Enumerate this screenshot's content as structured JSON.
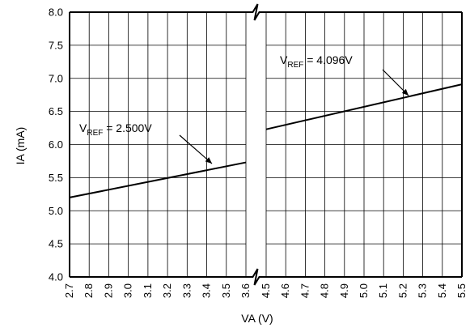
{
  "chart_data": {
    "type": "line",
    "xlabel": "VA (V)",
    "ylabel": "IA (mA)",
    "ylim": [
      4.0,
      8.0
    ],
    "y_ticks": [
      "4.0",
      "4.5",
      "5.0",
      "5.5",
      "6.0",
      "6.5",
      "7.0",
      "7.5",
      "8.0"
    ],
    "axis_break": true,
    "panels": [
      {
        "xlim": [
          2.7,
          3.6
        ],
        "x_ticks": [
          "2.7",
          "2.8",
          "2.9",
          "3.0",
          "3.1",
          "3.2",
          "3.3",
          "3.4",
          "3.5",
          "3.6"
        ],
        "series": [
          {
            "x": [
              2.7,
              3.6
            ],
            "y": [
              5.2,
              5.73
            ],
            "label_main": "V",
            "label_sub": "REF",
            "label_rest": " = 2.500V"
          }
        ]
      },
      {
        "xlim": [
          4.5,
          5.5
        ],
        "x_ticks": [
          "4.5",
          "4.6",
          "4.7",
          "4.8",
          "4.9",
          "5.0",
          "5.1",
          "5.2",
          "5.3",
          "5.4",
          "5.5"
        ],
        "series": [
          {
            "x": [
              4.5,
              5.5
            ],
            "y": [
              6.23,
              6.91
            ],
            "label_main": "V",
            "label_sub": "REF",
            "label_rest": " = 4.096V"
          }
        ]
      }
    ],
    "grid": true,
    "line_color": "#000000"
  }
}
